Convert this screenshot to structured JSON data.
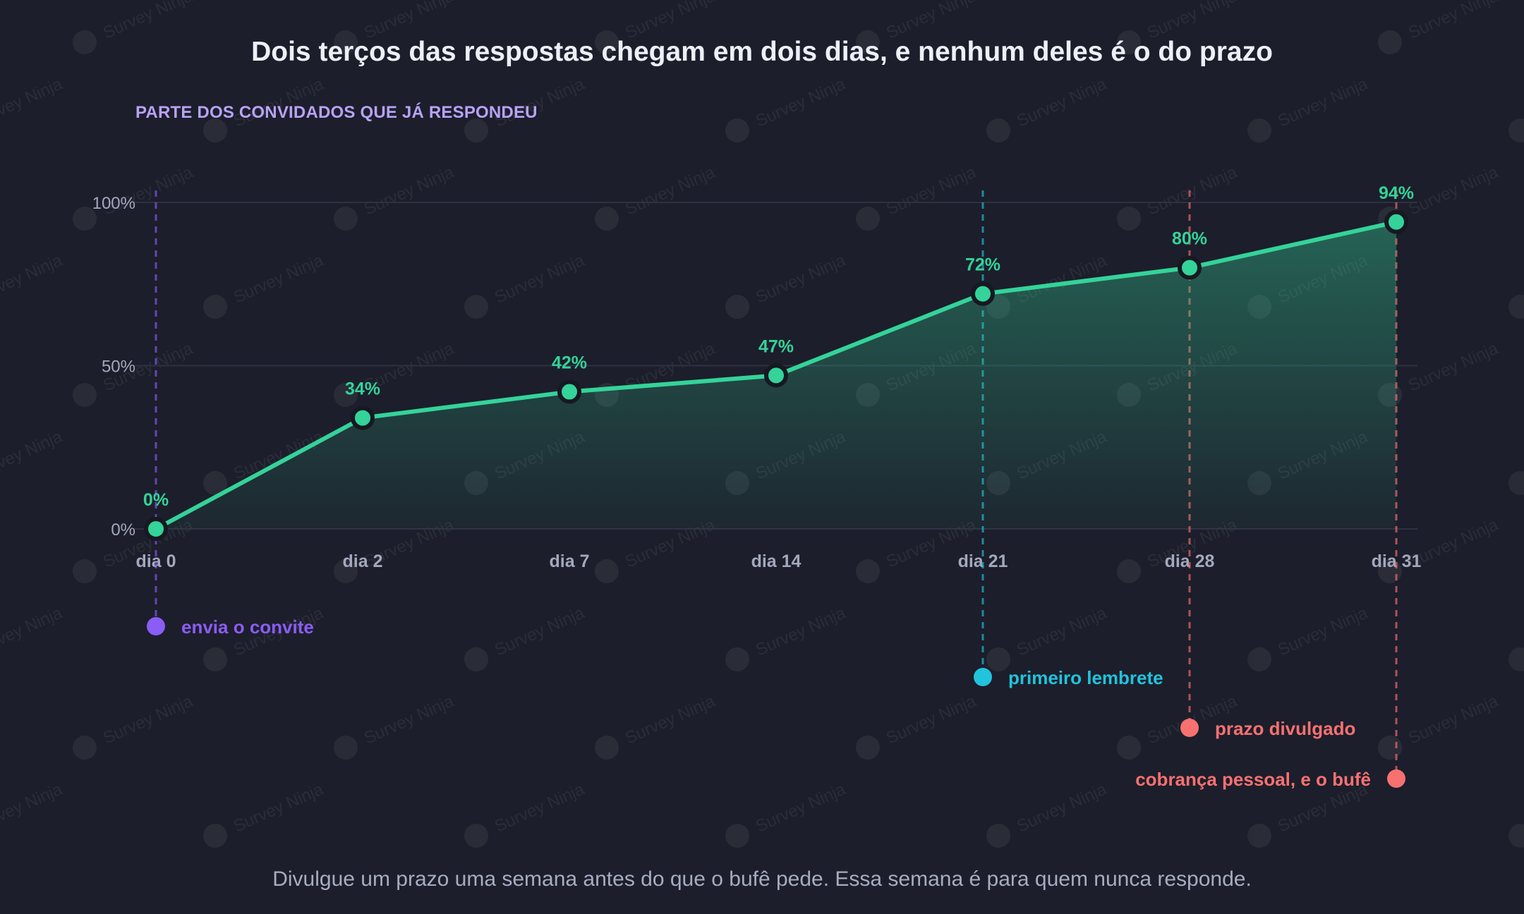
{
  "title": "Dois terços das respostas chegam em dois dias, e nenhum deles é o do prazo",
  "subtitle": "PARTE DOS CONVIDADOS QUE JÁ RESPONDEU",
  "footnote": "Divulgue um prazo uma semana antes do que o bufê pede. Essa semana é para quem nunca responde.",
  "watermark": "Survey Ninja",
  "colors": {
    "background": "#1c1e2b",
    "line": "#34d399",
    "invite": "#8b5cf6",
    "reminder": "#22c3dc",
    "deadline": "#f87171",
    "grid": "#2e3143",
    "tick": "#a3a8bd"
  },
  "chart_data": {
    "type": "line",
    "x": [
      "dia 0",
      "dia 2",
      "dia 7",
      "dia 14",
      "dia 21",
      "dia 28",
      "dia 31"
    ],
    "values": [
      0,
      34,
      42,
      47,
      72,
      80,
      94
    ],
    "data_labels": [
      "0%",
      "34%",
      "42%",
      "47%",
      "72%",
      "80%",
      "94%"
    ],
    "ylim": [
      0,
      100
    ],
    "y_ticks": [
      "0%",
      "50%",
      "100%"
    ],
    "y_tick_values": [
      0,
      50,
      100
    ],
    "area_fill": true,
    "grid": true,
    "events": [
      {
        "day_index": 0,
        "label": "envia o convite",
        "color": "#8b5cf6",
        "label_side": "right"
      },
      {
        "day_index": 4,
        "label": "primeiro lembrete",
        "color": "#22c3dc",
        "label_side": "right"
      },
      {
        "day_index": 5,
        "label": "prazo divulgado",
        "color": "#f87171",
        "label_side": "right"
      },
      {
        "day_index": 6,
        "label": "cobrança pessoal, e o bufê",
        "color": "#f87171",
        "label_side": "left"
      }
    ]
  }
}
